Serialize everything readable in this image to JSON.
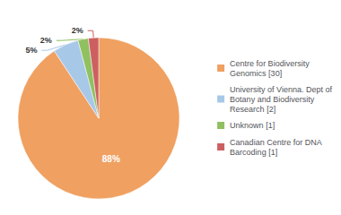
{
  "chart_data": {
    "type": "pie",
    "categories": [
      "Centre for Biodiversity\nGenomics [30]",
      "University of Vienna. Dept of\nBotany and Biodiversity\nResearch [2]",
      "Unknown [1]",
      "Canadian Centre for DNA\nBarcoding [1]"
    ],
    "values": [
      88,
      5,
      2,
      2
    ],
    "value_labels": [
      "88%",
      "5%",
      "2%",
      "2%"
    ],
    "colors": [
      "#f0a060",
      "#a8c8e8",
      "#90c060",
      "#cc6060"
    ],
    "data_labels": true,
    "legend": "right"
  }
}
